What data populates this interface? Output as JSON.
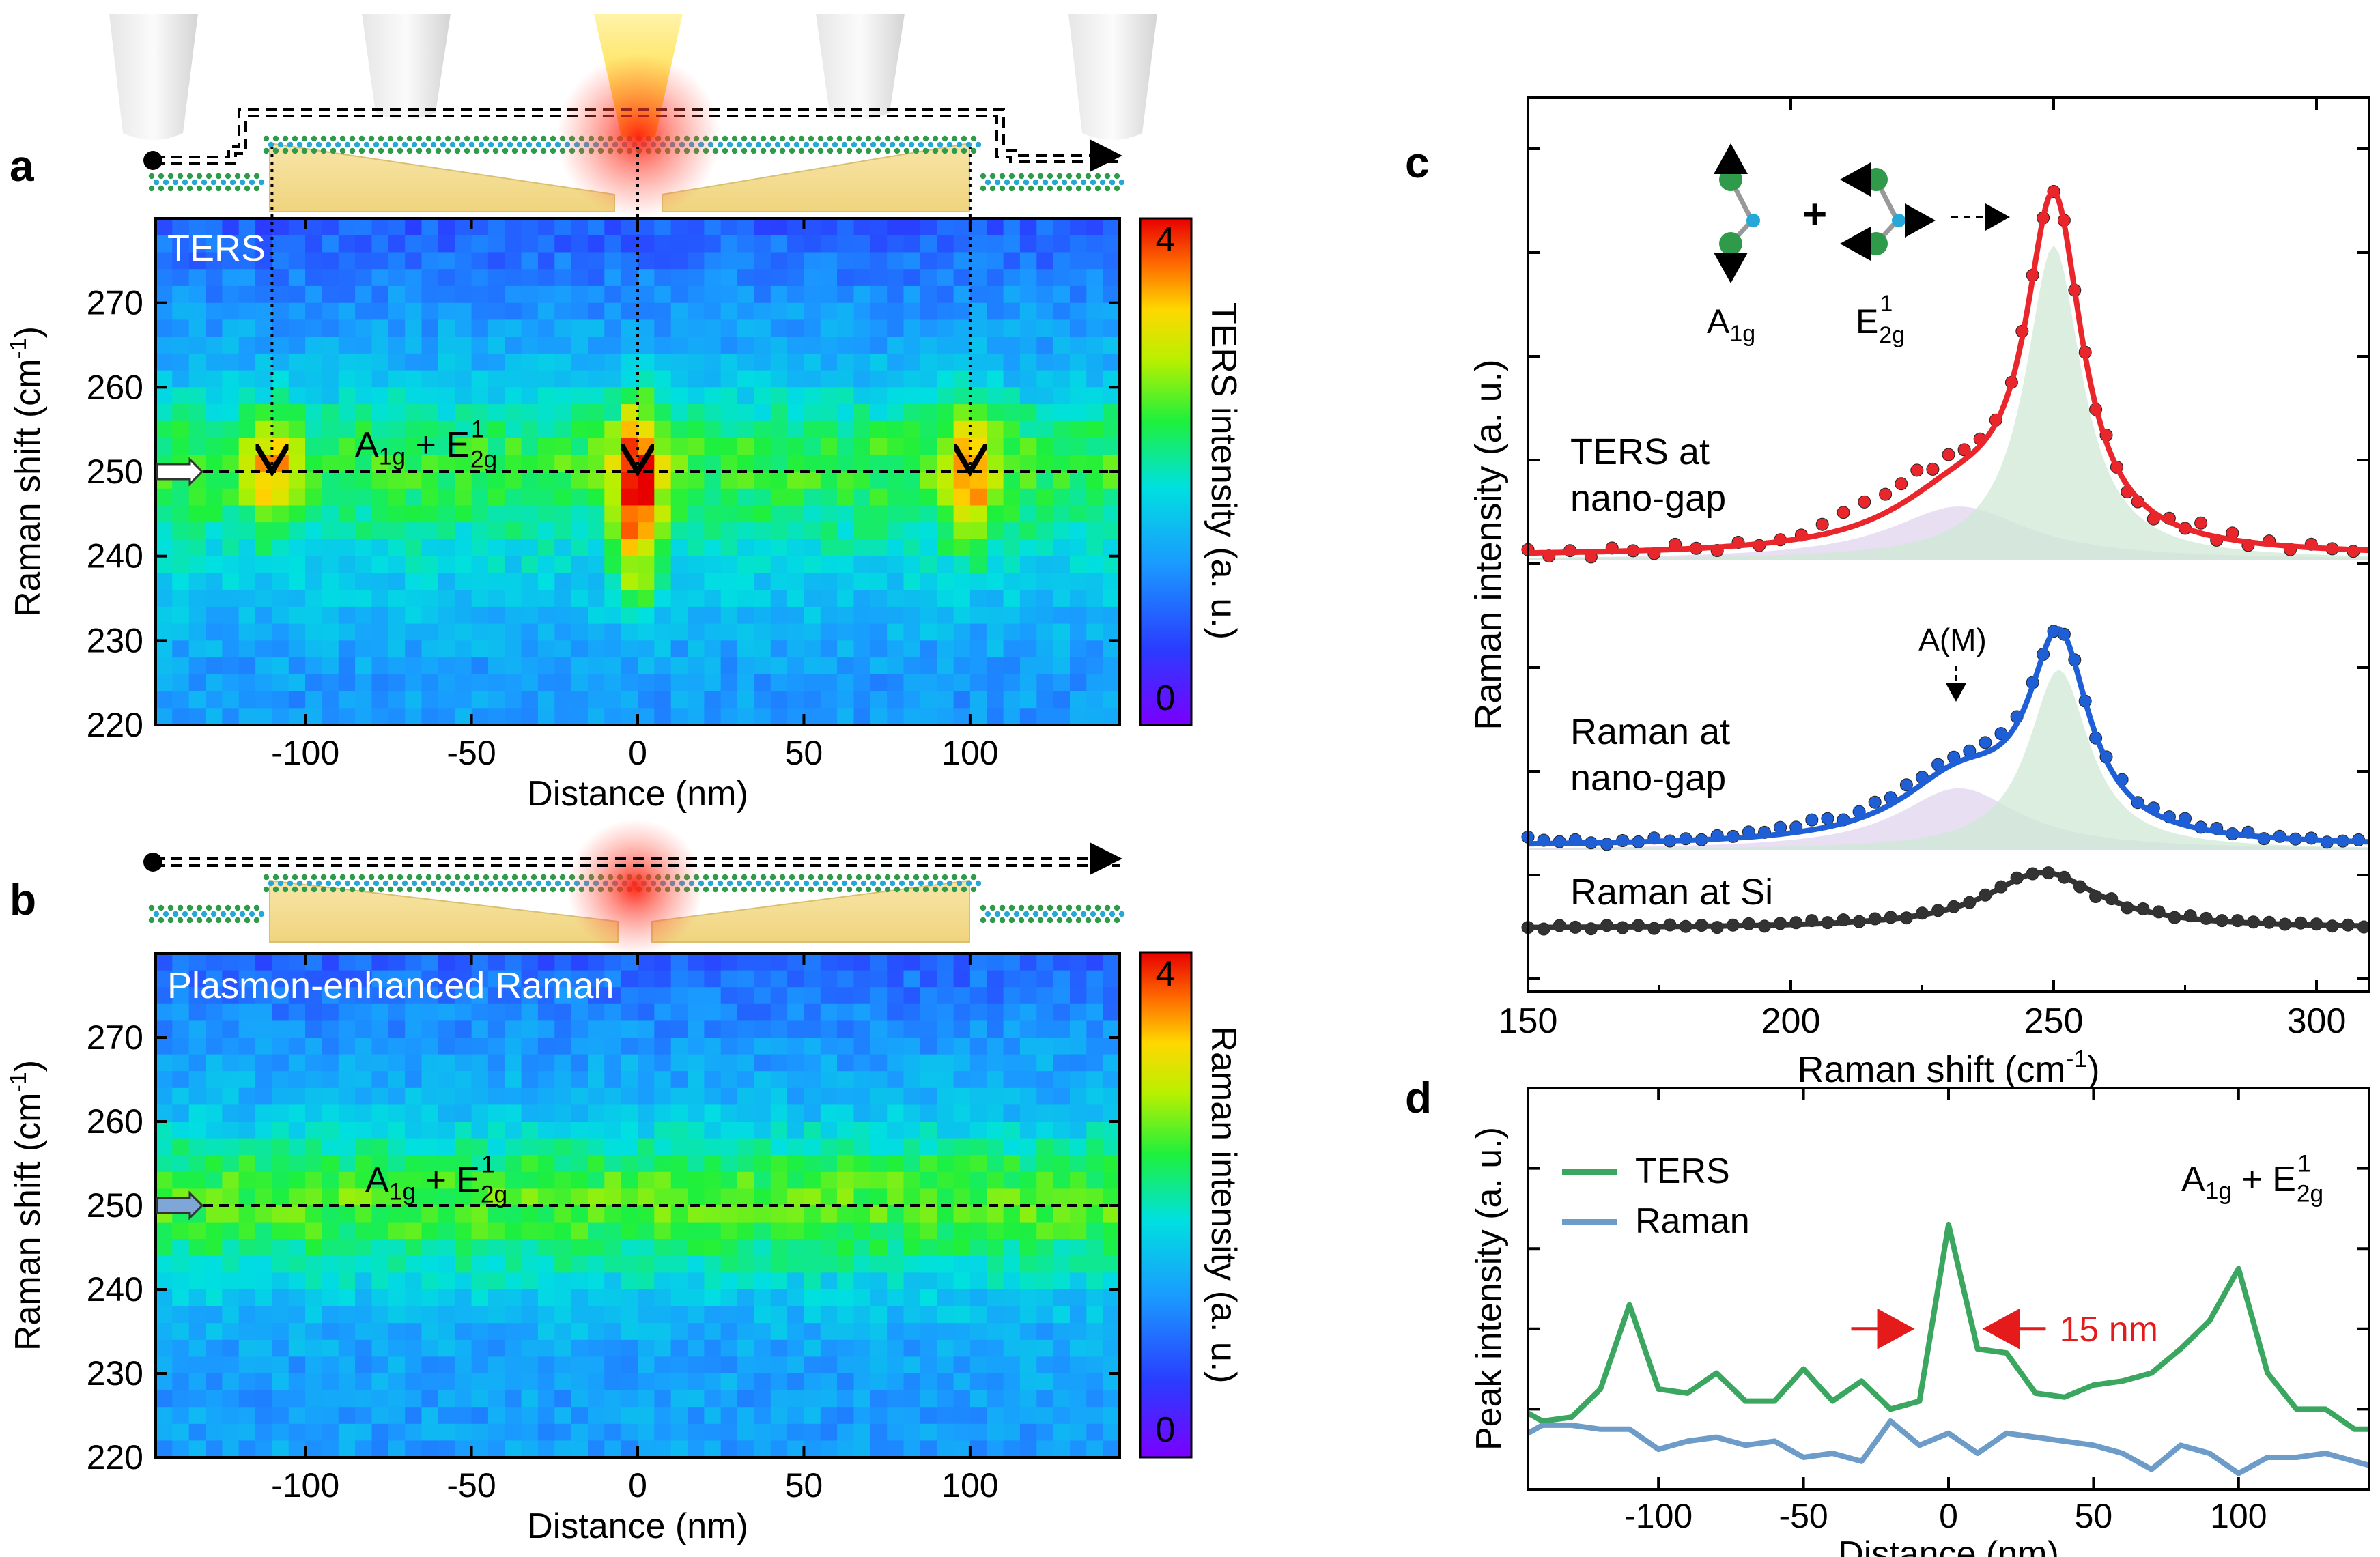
{
  "panel_labels": {
    "a": "a",
    "b": "b",
    "c": "c",
    "d": "d"
  },
  "colors": {
    "ters": "#e8262b",
    "raman_gap": "#1f5fd6",
    "raman_si": "#333333",
    "d_ters": "#3aa660",
    "d_raman": "#6d9cc9",
    "arrow_red": "#e51b1b",
    "a1g_fill": "#cfe8d6",
    "am_fill": "#e4d9f0",
    "gold": "#f2dc8c"
  },
  "chart_data": [
    {
      "id": "a",
      "type": "heatmap",
      "title": "TERS",
      "xlabel": "Distance (nm)",
      "ylabel": "Raman shift (cm-1)",
      "xlim": [
        -145,
        145
      ],
      "ylim": [
        220,
        280
      ],
      "xticks": [
        -100,
        -50,
        0,
        50,
        100
      ],
      "yticks": [
        220,
        230,
        240,
        250,
        260,
        270
      ],
      "colorbar": {
        "label": "TERS intensity (a. u.)",
        "min": 0,
        "max": 4,
        "tick_labels": [
          "4",
          "0"
        ]
      },
      "band_label": {
        "base": "A",
        "sub1": "1g",
        "plus": " + E",
        "sup2": "1",
        "sub2": "2g"
      },
      "band_position": 250,
      "hotspots_x": [
        -110,
        0,
        100
      ]
    },
    {
      "id": "b",
      "type": "heatmap",
      "title": "Plasmon-enhanced Raman",
      "xlabel": "Distance (nm)",
      "ylabel": "Raman shift (cm-1)",
      "xlim": [
        -145,
        145
      ],
      "ylim": [
        220,
        280
      ],
      "xticks": [
        -100,
        -50,
        0,
        50,
        100
      ],
      "yticks": [
        220,
        230,
        240,
        250,
        260,
        270
      ],
      "colorbar": {
        "label": "Raman intensity (a. u.)",
        "min": 0,
        "max": 4,
        "tick_labels": [
          "4",
          "0"
        ]
      },
      "band_label": {
        "base": "A",
        "sub1": "1g",
        "plus": " + E",
        "sup2": "1",
        "sub2": "2g"
      },
      "band_position": 250
    },
    {
      "id": "c",
      "type": "line",
      "xlabel": "Raman shift (cm-1)",
      "ylabel": "Raman intensity (a. u.)",
      "xlim": [
        150,
        310
      ],
      "xticks": [
        150,
        200,
        250,
        300
      ],
      "mode_labels": {
        "a1g_base": "A",
        "a1g_sub": "1g",
        "e2g_base": "E",
        "e2g_sup": "1",
        "e2g_sub": "2g",
        "plus": "+"
      },
      "am_label": "A(M)",
      "series": [
        {
          "name": "TERS at nano-gap",
          "line1": "TERS at",
          "line2": "nano-gap",
          "offset": 2.9,
          "A": 6.1,
          "x0": 250,
          "w": 6.5,
          "B": 0.95,
          "x1": 232,
          "w1": 16,
          "dot_x": [
            150,
            154,
            158,
            162,
            166,
            170,
            174,
            178,
            182,
            186,
            190,
            194,
            198,
            202,
            206,
            210,
            214,
            218,
            221,
            224,
            227,
            230,
            233,
            236,
            239,
            242,
            244,
            246,
            248,
            250,
            252,
            254,
            256,
            258,
            260,
            262,
            264,
            266,
            269,
            272,
            275,
            278,
            281,
            284,
            287,
            291,
            295,
            299,
            303,
            307
          ],
          "dot_noise": [
            0.1,
            -0.1,
            0.05,
            -0.15,
            0.1,
            0,
            -0.1,
            0.15,
            0,
            -0.1,
            0.1,
            -0.05,
            0.05,
            0.1,
            0.3,
            0.5,
            0.6,
            0.55,
            0.6,
            0.7,
            0.4,
            0.5,
            0.3,
            0.2,
            0.1,
            0,
            0.2,
            0.1,
            0,
            0,
            0.1,
            0,
            0.1,
            -0.1,
            0.2,
            0,
            -0.2,
            -0.1,
            -0.2,
            0.1,
            0,
            0.3,
            -0.1,
            0.2,
            -0.1,
            0.1,
            -0.1,
            0.1,
            0,
            -0.05
          ]
        },
        {
          "name": "Raman at nano-gap",
          "line1": "Raman at",
          "line2": "nano-gap",
          "offset": 0.0,
          "A": 3.5,
          "x0": 251,
          "w": 7,
          "B": 1.1,
          "x1": 232,
          "w1": 14,
          "dot_x": [
            150,
            153,
            156,
            159,
            162,
            165,
            168,
            171,
            174,
            177,
            180,
            183,
            186,
            189,
            192,
            195,
            198,
            201,
            204,
            207,
            210,
            213,
            216,
            219,
            222,
            225,
            228,
            231,
            234,
            237,
            240,
            243,
            246,
            248,
            250,
            252,
            254,
            256,
            258,
            260,
            263,
            266,
            269,
            272,
            275,
            278,
            281,
            284,
            287,
            290,
            293,
            296,
            299,
            302,
            305,
            308
          ],
          "dot_noise": [
            0.2,
            0.1,
            0.05,
            0.1,
            0,
            -0.05,
            0.05,
            0,
            0.1,
            0,
            0.05,
            0,
            0.1,
            0.05,
            0.15,
            0.1,
            0.2,
            0.15,
            0.3,
            0.25,
            0.1,
            0.2,
            0.3,
            0.2,
            0.3,
            0.2,
            0.25,
            0.2,
            0.2,
            0.3,
            0.3,
            0.2,
            0.1,
            0,
            0,
            0,
            0.1,
            0,
            -0.1,
            0.1,
            0.2,
            0,
            0.15,
            0.1,
            0.2,
            0.05,
            0.1,
            0,
            0.1,
            -0.05,
            0.05,
            0,
            0.05,
            -0.05,
            0,
            0.05
          ]
        },
        {
          "name": "Raman at Si",
          "line1": "Raman at Si",
          "line2": "",
          "offset": -1.2,
          "A": 1.0,
          "x0": 248,
          "w": 13,
          "B": 0.0,
          "x1": 232,
          "w1": 14,
          "dot_x": [
            150,
            153,
            156,
            159,
            162,
            165,
            168,
            171,
            174,
            177,
            180,
            183,
            186,
            189,
            192,
            195,
            198,
            201,
            204,
            207,
            210,
            213,
            216,
            219,
            222,
            225,
            228,
            231,
            234,
            237,
            240,
            243,
            246,
            249,
            252,
            255,
            258,
            261,
            264,
            267,
            270,
            273,
            276,
            279,
            282,
            285,
            288,
            291,
            294,
            297,
            300,
            303,
            306,
            309
          ],
          "dot_noise": [
            0,
            -0.05,
            0.05,
            0,
            -0.05,
            0.05,
            -0.02,
            0.04,
            -0.05,
            0.05,
            0,
            0.03,
            -0.04,
            0.02,
            0.05,
            -0.03,
            0.04,
            0.05,
            0.1,
            0.02,
            0.08,
            0,
            0.05,
            0.05,
            -0.02,
            0.05,
            0.04,
            0.03,
            0,
            0.02,
            0.03,
            0.05,
            0,
            0,
            0,
            -0.05,
            -0.1,
            0.05,
            -0.05,
            0.05,
            0.06,
            -0.03,
            0.08,
            0.05,
            0.02,
            0.05,
            0.03,
            0.04,
            0,
            0.05,
            0.03,
            -0.02,
            0.02,
            -0.03
          ]
        }
      ]
    },
    {
      "id": "d",
      "type": "line",
      "xlabel": "Distance (nm)",
      "ylabel": "Peak intensity (a. u.)",
      "xlim": [
        -145,
        145
      ],
      "ylim": [
        0,
        10
      ],
      "xticks": [
        -100,
        -50,
        0,
        50,
        100
      ],
      "label": {
        "base": "A",
        "sub1": "1g",
        "plus": " + E",
        "sup2": "1",
        "sub2": "2g"
      },
      "annotation": "15 nm",
      "annotation_span": [
        -10,
        10
      ],
      "x": [
        -145,
        -140,
        -130,
        -120,
        -110,
        -100,
        -90,
        -80,
        -70,
        -60,
        -50,
        -40,
        -30,
        -20,
        -10,
        0,
        10,
        20,
        30,
        40,
        50,
        60,
        70,
        80,
        90,
        100,
        110,
        120,
        130,
        140,
        145
      ],
      "series": [
        {
          "name": "TERS",
          "values": [
            1.9,
            1.7,
            1.8,
            2.5,
            4.6,
            2.5,
            2.4,
            2.9,
            2.2,
            2.2,
            3.0,
            2.2,
            2.7,
            2.0,
            2.2,
            6.6,
            3.5,
            3.4,
            2.4,
            2.3,
            2.6,
            2.7,
            2.9,
            3.5,
            4.2,
            5.5,
            2.9,
            2.0,
            2.0,
            1.5,
            1.5
          ]
        },
        {
          "name": "Raman",
          "values": [
            1.4,
            1.6,
            1.6,
            1.5,
            1.5,
            1.0,
            1.2,
            1.3,
            1.1,
            1.2,
            0.8,
            0.9,
            0.7,
            1.7,
            1.1,
            1.4,
            0.9,
            1.4,
            1.3,
            1.2,
            1.1,
            0.9,
            0.5,
            1.1,
            0.9,
            0.4,
            0.8,
            0.8,
            0.9,
            0.7,
            0.6
          ]
        }
      ]
    }
  ]
}
